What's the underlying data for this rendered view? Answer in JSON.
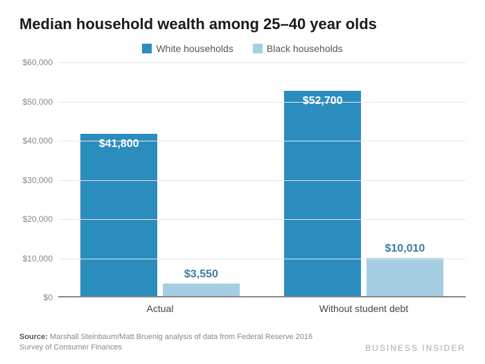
{
  "chart": {
    "type": "bar",
    "title": "Median household wealth among 25–40 year olds",
    "title_fontsize": 22,
    "title_color": "#1a1a1a",
    "background_color": "#ffffff",
    "grid_color": "#e6e6e6",
    "axis_color": "#888888",
    "font_family": "Helvetica, Arial, sans-serif",
    "legend": {
      "items": [
        {
          "label": "White households",
          "color": "#2b8cbe"
        },
        {
          "label": "Black households",
          "color": "#a6cee3"
        }
      ],
      "fontsize": 14,
      "text_color": "#555555"
    },
    "y_axis": {
      "min": 0,
      "max": 60000,
      "tick_step": 10000,
      "ticks": [
        {
          "value": 0,
          "label": "$0"
        },
        {
          "value": 10000,
          "label": "$10,000"
        },
        {
          "value": 20000,
          "label": "$20,000"
        },
        {
          "value": 30000,
          "label": "$30,000"
        },
        {
          "value": 40000,
          "label": "$40,000"
        },
        {
          "value": 50000,
          "label": "$50,000"
        },
        {
          "value": 60000,
          "label": "$60,000"
        }
      ],
      "tick_fontsize": 12,
      "tick_color": "#888888"
    },
    "categories": [
      {
        "key": "actual",
        "label": "Actual"
      },
      {
        "key": "without_debt",
        "label": "Without student debt"
      }
    ],
    "series": [
      {
        "name": "White households",
        "color": "#2b8cbe",
        "value_label_color": "#ffffff",
        "value_label_position": "inside-top",
        "values": [
          {
            "category": "actual",
            "value": 41800,
            "label": "$41,800"
          },
          {
            "category": "without_debt",
            "value": 52700,
            "label": "$52,700"
          }
        ]
      },
      {
        "name": "Black households",
        "color": "#a6cee3",
        "value_label_color": "#3a7ca5",
        "value_label_position": "outside-top",
        "values": [
          {
            "category": "actual",
            "value": 3550,
            "label": "$3,550"
          },
          {
            "category": "without_debt",
            "value": 10010,
            "label": "$10,010"
          }
        ]
      }
    ],
    "bar_layout": {
      "group_gap_pct": 12,
      "bar_width_pct": 19,
      "bar_gap_within_group_pct": 1.2
    },
    "value_label_fontsize": 16,
    "category_label_fontsize": 14,
    "category_label_color": "#444444"
  },
  "footer": {
    "source_prefix": "Source:",
    "source_text": "Marshall Steinbaum/Matt Bruenig analysis of data from Federal Reserve 2016 Survey of Consumer Finances",
    "source_fontsize": 11,
    "source_color": "#888888",
    "brand": "BUSINESS INSIDER",
    "brand_fontsize": 12,
    "brand_color": "#aaaaaa",
    "brand_letter_spacing": 2
  }
}
